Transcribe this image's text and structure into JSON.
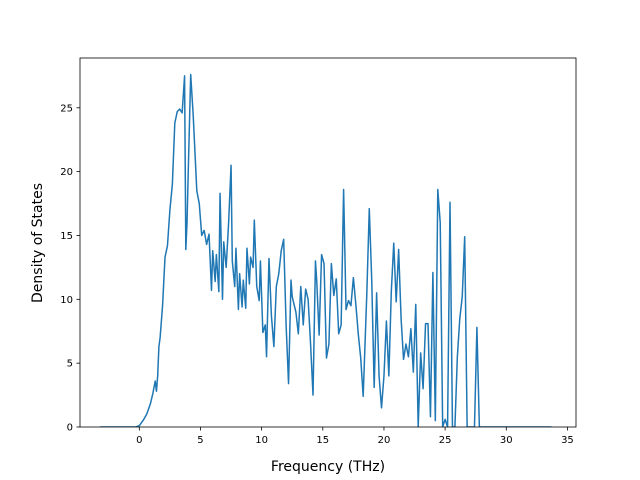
{
  "chart_data": {
    "type": "line",
    "title": "",
    "xlabel": "Frequency (THz)",
    "ylabel": "Density of States",
    "xlim": [
      -4.85,
      35.7
    ],
    "ylim": [
      0,
      28.9
    ],
    "xticks": [
      0,
      5,
      10,
      15,
      20,
      25,
      30,
      35
    ],
    "yticks": [
      0,
      5,
      10,
      15,
      20,
      25
    ],
    "grid": false,
    "legend": "none",
    "series": [
      {
        "color": "#1f77b4",
        "x": [
          -3.2,
          -2.0,
          -1.0,
          -0.3,
          0.0,
          0.3,
          0.6,
          0.9,
          1.1,
          1.3,
          1.4,
          1.5,
          1.6,
          1.7,
          1.9,
          2.1,
          2.3,
          2.5,
          2.7,
          2.9,
          3.1,
          3.3,
          3.5,
          3.7,
          3.8,
          3.9,
          4.0,
          4.2,
          4.4,
          4.7,
          4.9,
          5.1,
          5.3,
          5.5,
          5.7,
          5.9,
          6.0,
          6.2,
          6.3,
          6.5,
          6.6,
          6.8,
          6.9,
          7.1,
          7.3,
          7.5,
          7.6,
          7.8,
          7.9,
          8.1,
          8.2,
          8.4,
          8.5,
          8.7,
          8.8,
          9.0,
          9.1,
          9.3,
          9.4,
          9.6,
          9.8,
          9.9,
          10.1,
          10.3,
          10.4,
          10.6,
          10.8,
          11.0,
          11.2,
          11.4,
          11.6,
          11.8,
          12.0,
          12.2,
          12.4,
          12.5,
          12.8,
          13.0,
          13.2,
          13.4,
          13.6,
          13.8,
          14.0,
          14.2,
          14.4,
          14.5,
          14.7,
          14.9,
          15.1,
          15.3,
          15.5,
          15.7,
          15.9,
          16.1,
          16.3,
          16.5,
          16.7,
          16.9,
          17.1,
          17.3,
          17.5,
          17.7,
          17.9,
          18.1,
          18.3,
          18.6,
          18.8,
          19.0,
          19.2,
          19.4,
          19.6,
          19.8,
          20.0,
          20.2,
          20.4,
          20.6,
          20.8,
          21.0,
          21.2,
          21.4,
          21.6,
          21.8,
          22.0,
          22.2,
          22.4,
          22.6,
          22.8,
          23.0,
          23.2,
          23.4,
          23.6,
          23.8,
          24.0,
          24.2,
          24.4,
          24.6,
          24.8,
          25.0,
          25.2,
          25.4,
          25.6,
          25.8,
          26.0,
          26.2,
          26.4,
          26.6,
          26.8,
          27.0,
          27.2,
          27.4,
          27.6,
          27.8,
          28.0,
          28.2,
          29.0,
          31.0,
          33.7
        ],
        "y": [
          0,
          0,
          0,
          0,
          0.1,
          0.5,
          1.0,
          1.8,
          2.6,
          3.6,
          2.8,
          4.0,
          6.3,
          7.0,
          9.5,
          13.3,
          14.2,
          17.0,
          19.0,
          23.8,
          24.7,
          24.9,
          24.6,
          27.5,
          13.9,
          16.0,
          20.0,
          27.6,
          24.5,
          18.5,
          17.5,
          15.0,
          15.4,
          14.3,
          15.1,
          10.7,
          13.8,
          11.4,
          13.5,
          10.6,
          18.3,
          10.0,
          14.5,
          12.5,
          16.0,
          20.5,
          13.0,
          11.0,
          14.0,
          9.2,
          12.0,
          9.4,
          11.5,
          9.3,
          14.0,
          11.2,
          13.3,
          12.5,
          16.2,
          11.0,
          9.9,
          13.0,
          7.4,
          8.0,
          5.5,
          13.2,
          8.7,
          6.3,
          11.0,
          12.0,
          13.8,
          14.7,
          8.0,
          3.4,
          11.5,
          10.2,
          9.0,
          7.3,
          11.0,
          8.0,
          10.8,
          10.0,
          6.5,
          2.5,
          13.0,
          11.5,
          7.2,
          13.5,
          12.8,
          5.4,
          6.5,
          12.8,
          10.3,
          11.6,
          7.3,
          8.0,
          18.6,
          9.2,
          9.9,
          9.5,
          11.7,
          9.6,
          7.3,
          5.4,
          2.4,
          10.5,
          17.1,
          11.5,
          3.1,
          10.5,
          4.0,
          1.5,
          4.0,
          8.3,
          4.0,
          10.6,
          14.4,
          9.8,
          13.9,
          8.5,
          5.3,
          6.5,
          5.5,
          7.7,
          4.3,
          9.6,
          0.0,
          5.8,
          3.0,
          8.1,
          8.1,
          0.8,
          12.1,
          0.5,
          18.6,
          16.0,
          0.0,
          0.6,
          0.0,
          17.6,
          0.0,
          0.0,
          5.5,
          8.5,
          10.2,
          14.9,
          0.0,
          0.0,
          0.0,
          0.0,
          7.8,
          0.0,
          0.0,
          0.0,
          0.0,
          0.0,
          0.0
        ]
      }
    ]
  }
}
